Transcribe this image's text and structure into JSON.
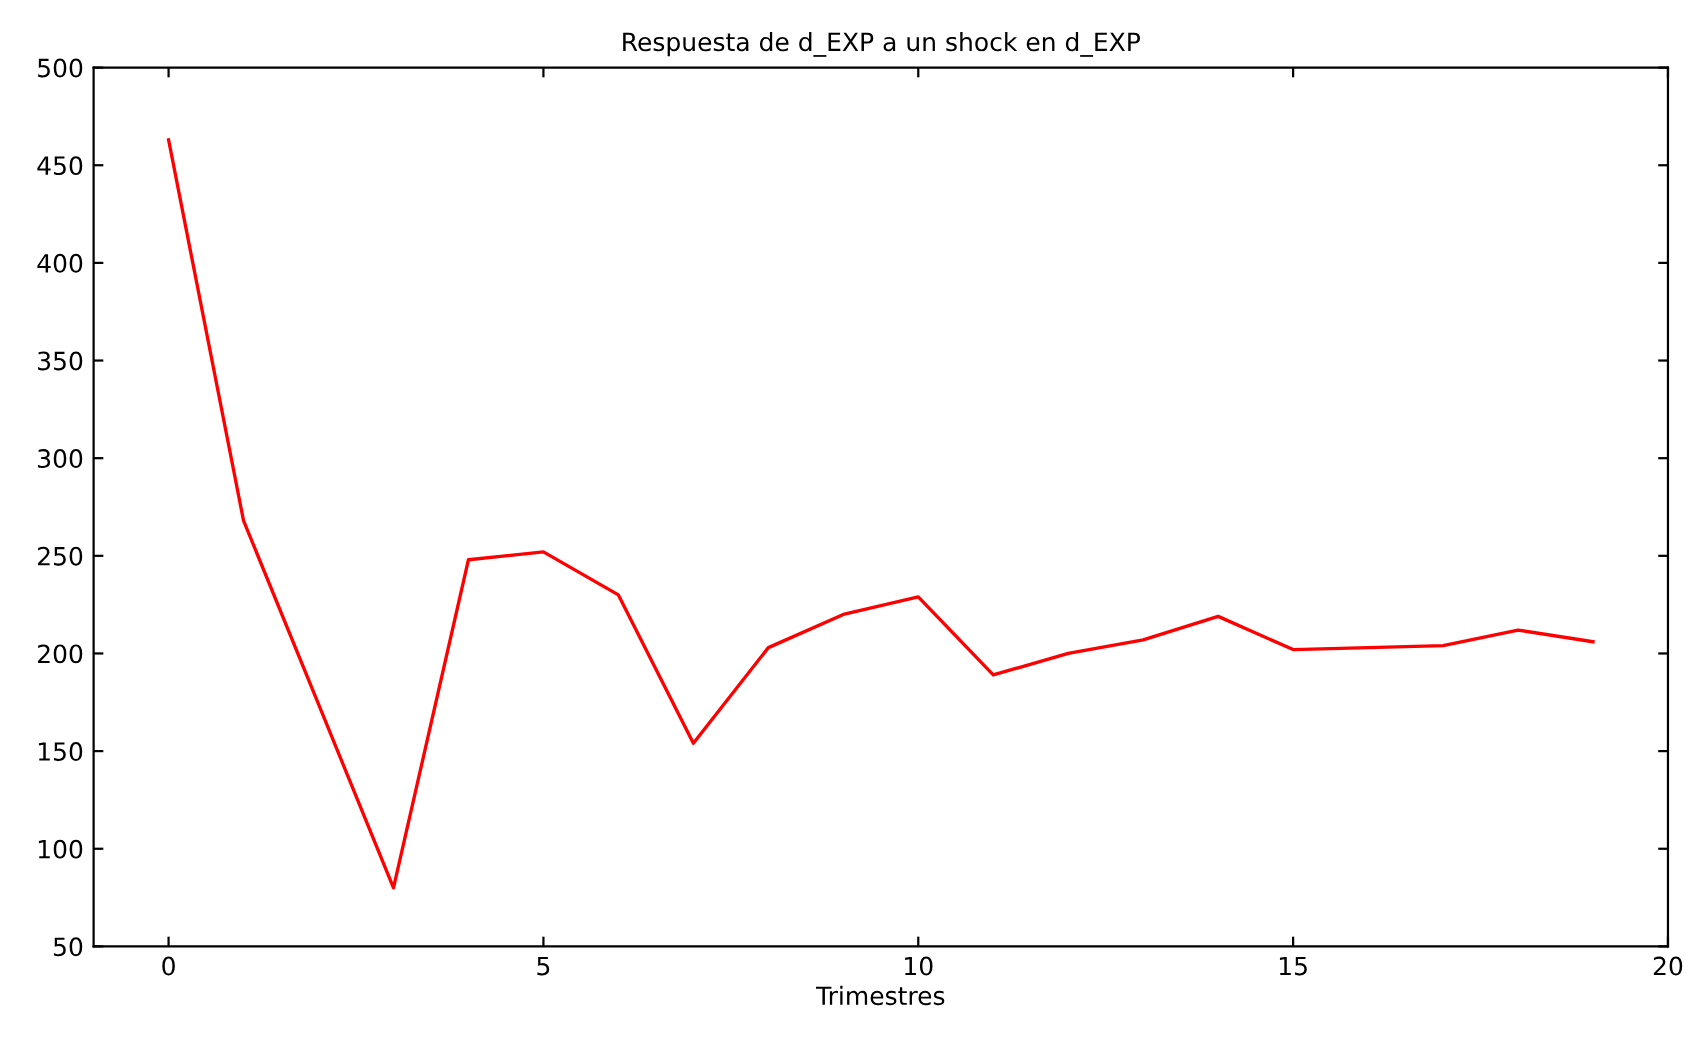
{
  "chart_data": {
    "type": "line",
    "title": "Respuesta de d_EXP a un shock en d_EXP",
    "xlabel": "Trimestres",
    "x": [
      0,
      1,
      2,
      3,
      4,
      5,
      6,
      7,
      8,
      9,
      10,
      11,
      12,
      13,
      14,
      15,
      16,
      17,
      18,
      19
    ],
    "series": [
      {
        "color": "#ff0000",
        "values": [
          463,
          268,
          174,
          80,
          248,
          252,
          230,
          154,
          203,
          220,
          229,
          189,
          200,
          207,
          219,
          202,
          203,
          204,
          212,
          206
        ]
      }
    ],
    "xlim": [
      -1,
      20
    ],
    "xticks": [
      0,
      5,
      10,
      15,
      20
    ],
    "ylim": [
      50,
      500
    ],
    "yticks": [
      50,
      100,
      150,
      200,
      250,
      300,
      350,
      400,
      450,
      500
    ],
    "grid": false,
    "legend": false,
    "marker": "none",
    "line_style": "solid"
  }
}
